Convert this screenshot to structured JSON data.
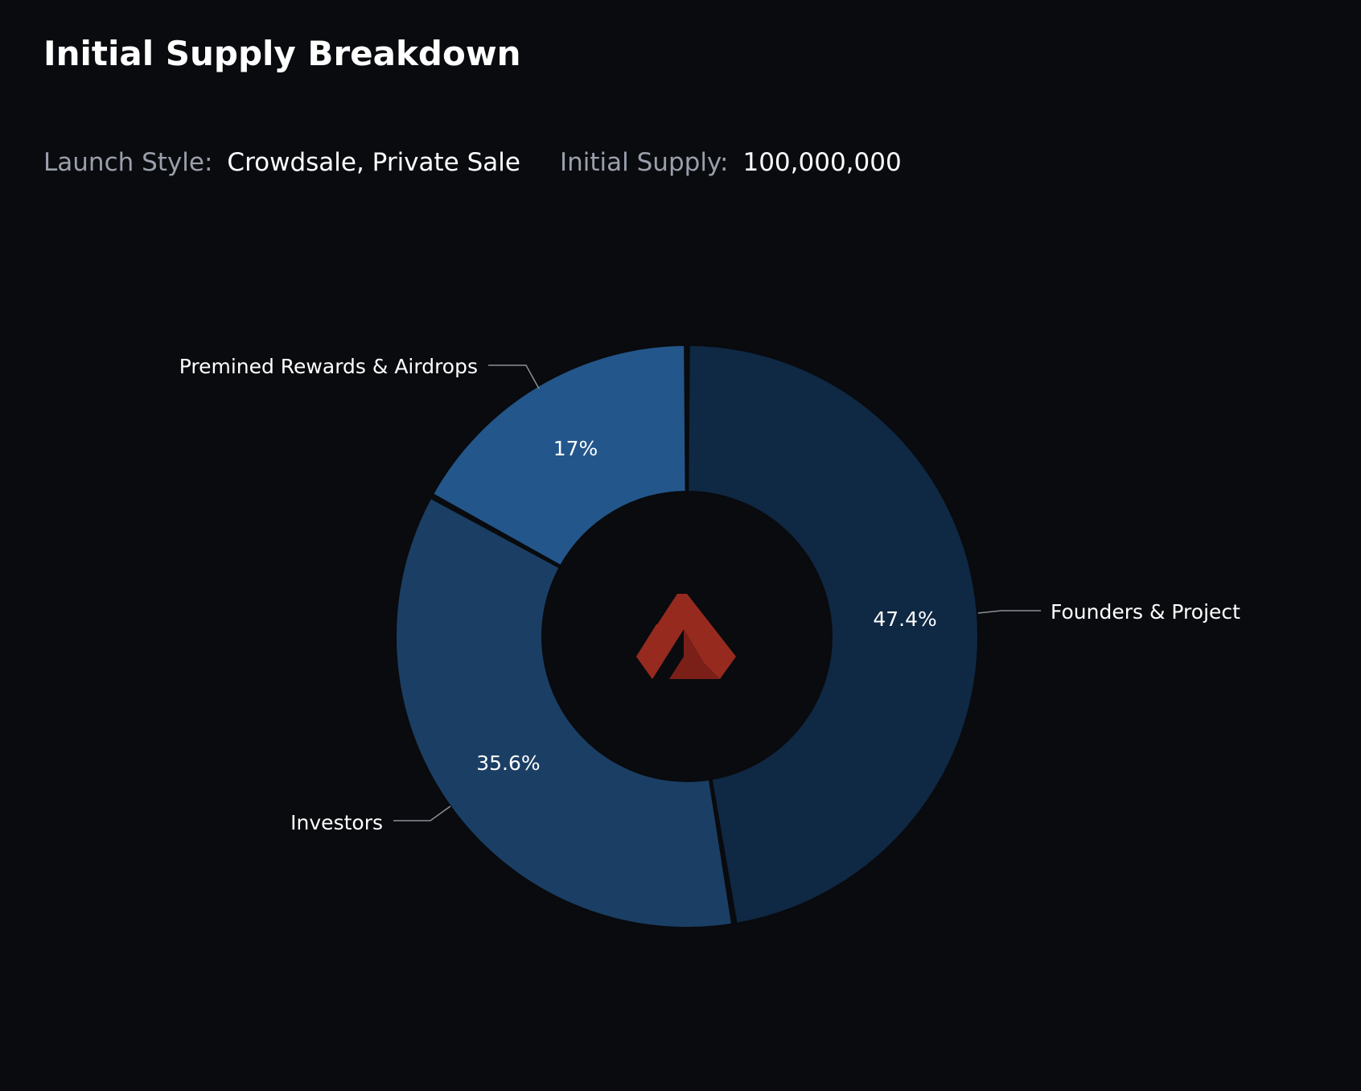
{
  "title": "Initial Supply Breakdown",
  "launch": {
    "label": "Launch Style:",
    "value": "Crowdsale, Private Sale"
  },
  "supply": {
    "label": "Initial Supply:",
    "value": "100,000,000"
  },
  "colors": {
    "background": "#090b0e",
    "founders": "#0f2844",
    "investors": "#1b3e64",
    "premined": "#23568b",
    "logo_red": "#962a1f",
    "logo_dark_red": "#7a2018"
  },
  "center_icon": "akash-logo-icon",
  "chart_data": {
    "type": "pie",
    "donut": true,
    "title": "",
    "slices": [
      {
        "label": "Founders & Project",
        "value": 47.4,
        "display": "47.4%"
      },
      {
        "label": "Investors",
        "value": 35.6,
        "display": "35.6%"
      },
      {
        "label": "Premined Rewards & Airdrops",
        "value": 17,
        "display": "17%"
      }
    ]
  }
}
